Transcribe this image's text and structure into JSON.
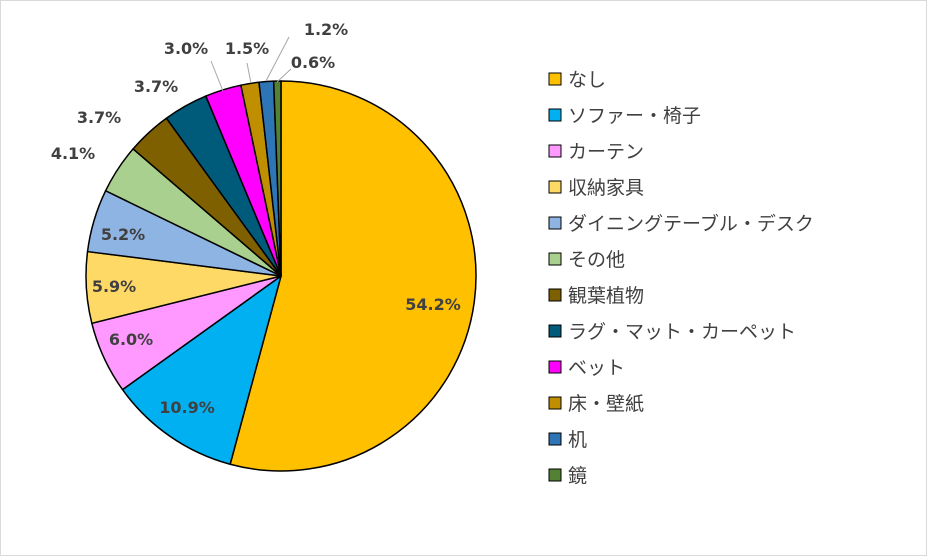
{
  "chart_data": {
    "type": "pie",
    "title": "",
    "legend_position": "right",
    "start_angle_deg": 0,
    "direction": "clockwise",
    "slices": [
      {
        "name": "なし",
        "value": 54.2,
        "label": "54.2%",
        "color": "#FFC000"
      },
      {
        "name": "ソファー・椅子",
        "value": 10.9,
        "label": "10.9%",
        "color": "#00B0F0"
      },
      {
        "name": "カーテン",
        "value": 6.0,
        "label": "6.0%",
        "color": "#FF99FF"
      },
      {
        "name": "収納家具",
        "value": 5.9,
        "label": "5.9%",
        "color": "#FFD966"
      },
      {
        "name": "ダイニングテーブル・デスク",
        "value": 5.2,
        "label": "5.2%",
        "color": "#8EB4E3"
      },
      {
        "name": "その他",
        "value": 4.1,
        "label": "4.1%",
        "color": "#A9D08E"
      },
      {
        "name": "観葉植物",
        "value": 3.7,
        "label": "3.7%",
        "color": "#7F6000"
      },
      {
        "name": "ラグ・マット・カーペット",
        "value": 3.7,
        "label": "3.7%",
        "color": "#005A7A"
      },
      {
        "name": "ベット",
        "value": 3.0,
        "label": "3.0%",
        "color": "#FF00FF"
      },
      {
        "name": "床・壁紙",
        "value": 1.5,
        "label": "1.5%",
        "color": "#BF8F00"
      },
      {
        "name": "机",
        "value": 1.2,
        "label": "1.2%",
        "color": "#2E75B6"
      },
      {
        "name": "鏡",
        "value": 0.6,
        "label": "0.6%",
        "color": "#548235"
      }
    ]
  }
}
